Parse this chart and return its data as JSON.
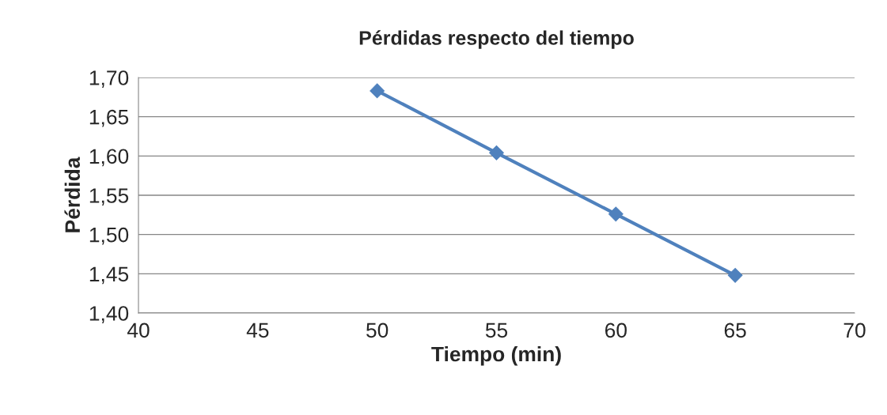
{
  "chart_data": {
    "type": "line",
    "title": "Pérdidas respecto del tiempo",
    "xlabel": "Tiempo (min)",
    "ylabel": "Pérdida",
    "x": [
      50,
      55,
      60,
      65
    ],
    "series": [
      {
        "color": "#4f81bd",
        "values": [
          1.683,
          1.604,
          1.526,
          1.448
        ]
      }
    ],
    "xlim": [
      40,
      70
    ],
    "xticks": [
      40,
      45,
      50,
      55,
      60,
      65,
      70
    ],
    "ylim": [
      1.4,
      1.7
    ],
    "yticks": [
      {
        "value": 1.4,
        "label": "1,40"
      },
      {
        "value": 1.45,
        "label": "1,45"
      },
      {
        "value": 1.5,
        "label": "1,50"
      },
      {
        "value": 1.55,
        "label": "1,55"
      },
      {
        "value": 1.6,
        "label": "1,60"
      },
      {
        "value": 1.65,
        "label": "1,65"
      },
      {
        "value": 1.7,
        "label": "1,70"
      }
    ],
    "grid": "y",
    "marker": "diamond",
    "line_style": "solid"
  }
}
